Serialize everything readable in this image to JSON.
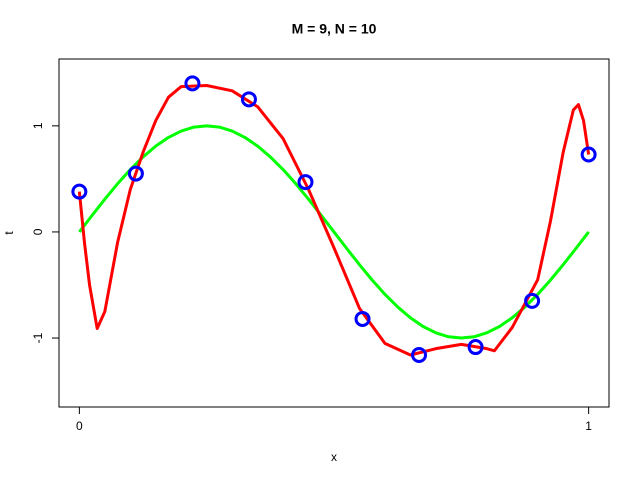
{
  "chart_data": {
    "type": "line",
    "title": "M = 9, N = 10",
    "xlabel": "x",
    "ylabel": "t",
    "xlim": [
      -0.04,
      1.04
    ],
    "ylim": [
      -1.65,
      1.63
    ],
    "xticks": [
      0,
      1
    ],
    "yticks": [
      -1,
      0,
      1
    ],
    "series": [
      {
        "mode": "line",
        "color": "#00ff00",
        "x": [
          0,
          0.025,
          0.05,
          0.075,
          0.1,
          0.125,
          0.15,
          0.175,
          0.2,
          0.225,
          0.25,
          0.275,
          0.3,
          0.325,
          0.35,
          0.375,
          0.4,
          0.425,
          0.45,
          0.475,
          0.5,
          0.525,
          0.55,
          0.575,
          0.6,
          0.625,
          0.65,
          0.675,
          0.7,
          0.725,
          0.75,
          0.775,
          0.8,
          0.825,
          0.85,
          0.875,
          0.9,
          0.925,
          0.95,
          0.975,
          1
        ],
        "values": [
          0,
          0.156,
          0.309,
          0.454,
          0.588,
          0.707,
          0.809,
          0.891,
          0.951,
          0.988,
          1,
          0.988,
          0.951,
          0.891,
          0.809,
          0.707,
          0.588,
          0.454,
          0.309,
          0.156,
          0,
          -0.156,
          -0.309,
          -0.454,
          -0.588,
          -0.707,
          -0.809,
          -0.891,
          -0.951,
          -0.988,
          -1,
          -0.988,
          -0.951,
          -0.891,
          -0.809,
          -0.707,
          -0.588,
          -0.454,
          -0.309,
          -0.156,
          0
        ]
      },
      {
        "mode": "line",
        "color": "#ff0000",
        "x": [
          0,
          0.01,
          0.02,
          0.035,
          0.05,
          0.075,
          0.1,
          0.125,
          0.15,
          0.175,
          0.2,
          0.25,
          0.3,
          0.35,
          0.4,
          0.45,
          0.5,
          0.55,
          0.6,
          0.65,
          0.7,
          0.75,
          0.8,
          0.815,
          0.85,
          0.9,
          0.925,
          0.95,
          0.97,
          0.98,
          0.99,
          1
        ],
        "values": [
          0.38,
          -0.1,
          -0.5,
          -0.91,
          -0.75,
          -0.1,
          0.4,
          0.75,
          1.05,
          1.27,
          1.37,
          1.38,
          1.33,
          1.18,
          0.88,
          0.4,
          -0.15,
          -0.72,
          -1.05,
          -1.16,
          -1.1,
          -1.06,
          -1.1,
          -1.12,
          -0.9,
          -0.45,
          0.1,
          0.75,
          1.15,
          1.2,
          1.05,
          0.73
        ]
      },
      {
        "mode": "points",
        "color": "#0000ff",
        "x": [
          0,
          0.111,
          0.222,
          0.333,
          0.444,
          0.556,
          0.667,
          0.778,
          0.889,
          1
        ],
        "values": [
          0.38,
          0.55,
          1.4,
          1.25,
          0.47,
          -0.82,
          -1.16,
          -1.085,
          -0.65,
          0.73
        ]
      }
    ]
  }
}
